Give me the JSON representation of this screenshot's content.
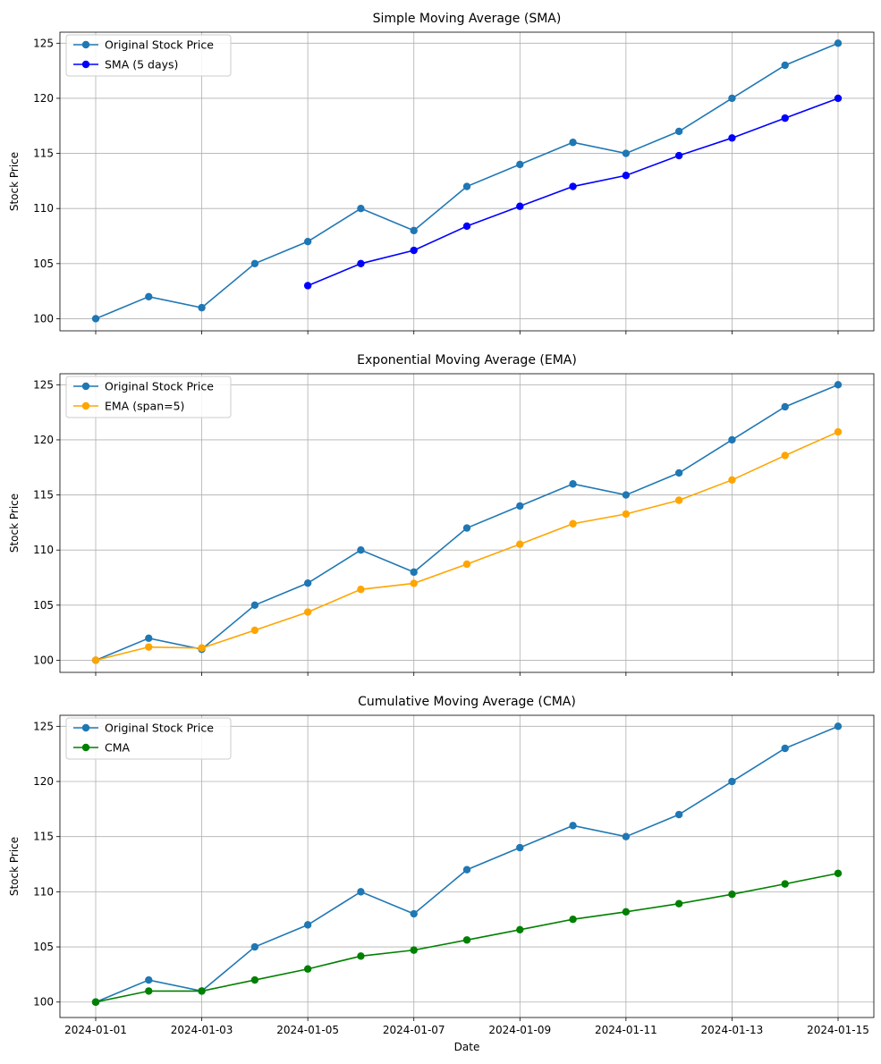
{
  "chart_data": [
    {
      "type": "line",
      "title": "Simple Moving Average (SMA)",
      "xlabel": "",
      "ylabel": "Stock Price",
      "x": [
        "2024-01-01",
        "2024-01-02",
        "2024-01-03",
        "2024-01-04",
        "2024-01-05",
        "2024-01-06",
        "2024-01-07",
        "2024-01-08",
        "2024-01-09",
        "2024-01-10",
        "2024-01-11",
        "2024-01-12",
        "2024-01-13",
        "2024-01-14",
        "2024-01-15"
      ],
      "xticks": [
        "2024-01-01",
        "2024-01-03",
        "2024-01-05",
        "2024-01-07",
        "2024-01-09",
        "2024-01-11",
        "2024-01-13",
        "2024-01-15"
      ],
      "yticks": [
        100,
        105,
        110,
        115,
        120,
        125
      ],
      "ylim": [
        98.9,
        126
      ],
      "grid": true,
      "legend": "top-left",
      "series": [
        {
          "name": "Original Stock Price",
          "color": "#1f77b4",
          "values": [
            100,
            102,
            101,
            105,
            107,
            110,
            108,
            112,
            114,
            116,
            115,
            117,
            120,
            123,
            125
          ]
        },
        {
          "name": "SMA (5 days)",
          "color": "#0000ff",
          "values": [
            null,
            null,
            null,
            null,
            103,
            105,
            106.2,
            108.4,
            110.2,
            112,
            113,
            114.8,
            116.4,
            118.2,
            120
          ]
        }
      ]
    },
    {
      "type": "line",
      "title": "Exponential Moving Average (EMA)",
      "xlabel": "",
      "ylabel": "Stock Price",
      "x": [
        "2024-01-01",
        "2024-01-02",
        "2024-01-03",
        "2024-01-04",
        "2024-01-05",
        "2024-01-06",
        "2024-01-07",
        "2024-01-08",
        "2024-01-09",
        "2024-01-10",
        "2024-01-11",
        "2024-01-12",
        "2024-01-13",
        "2024-01-14",
        "2024-01-15"
      ],
      "xticks": [
        "2024-01-01",
        "2024-01-03",
        "2024-01-05",
        "2024-01-07",
        "2024-01-09",
        "2024-01-11",
        "2024-01-13",
        "2024-01-15"
      ],
      "yticks": [
        100,
        105,
        110,
        115,
        120,
        125
      ],
      "ylim": [
        98.9,
        126
      ],
      "grid": true,
      "legend": "top-left",
      "series": [
        {
          "name": "Original Stock Price",
          "color": "#1f77b4",
          "values": [
            100,
            102,
            101,
            105,
            107,
            110,
            108,
            112,
            114,
            116,
            115,
            117,
            120,
            123,
            125
          ]
        },
        {
          "name": "EMA (span=5)",
          "color": "#ffa500",
          "values": [
            100,
            101.2,
            101.11,
            102.72,
            104.37,
            106.43,
            106.98,
            108.72,
            110.53,
            112.39,
            113.27,
            114.52,
            116.36,
            118.58,
            120.72
          ]
        }
      ]
    },
    {
      "type": "line",
      "title": "Cumulative Moving Average (CMA)",
      "xlabel": "Date",
      "ylabel": "Stock Price",
      "x": [
        "2024-01-01",
        "2024-01-02",
        "2024-01-03",
        "2024-01-04",
        "2024-01-05",
        "2024-01-06",
        "2024-01-07",
        "2024-01-08",
        "2024-01-09",
        "2024-01-10",
        "2024-01-11",
        "2024-01-12",
        "2024-01-13",
        "2024-01-14",
        "2024-01-15"
      ],
      "xticks": [
        "2024-01-01",
        "2024-01-03",
        "2024-01-05",
        "2024-01-07",
        "2024-01-09",
        "2024-01-11",
        "2024-01-13",
        "2024-01-15"
      ],
      "yticks": [
        100,
        105,
        110,
        115,
        120,
        125
      ],
      "ylim": [
        98.6,
        126
      ],
      "grid": true,
      "legend": "top-left",
      "series": [
        {
          "name": "Original Stock Price",
          "color": "#1f77b4",
          "values": [
            100,
            102,
            101,
            105,
            107,
            110,
            108,
            112,
            114,
            116,
            115,
            117,
            120,
            123,
            125
          ]
        },
        {
          "name": "CMA",
          "color": "#008000",
          "values": [
            100,
            101,
            101,
            102,
            103,
            104.17,
            104.71,
            105.63,
            106.56,
            107.5,
            108.18,
            108.92,
            109.77,
            110.71,
            111.67
          ]
        }
      ]
    }
  ]
}
